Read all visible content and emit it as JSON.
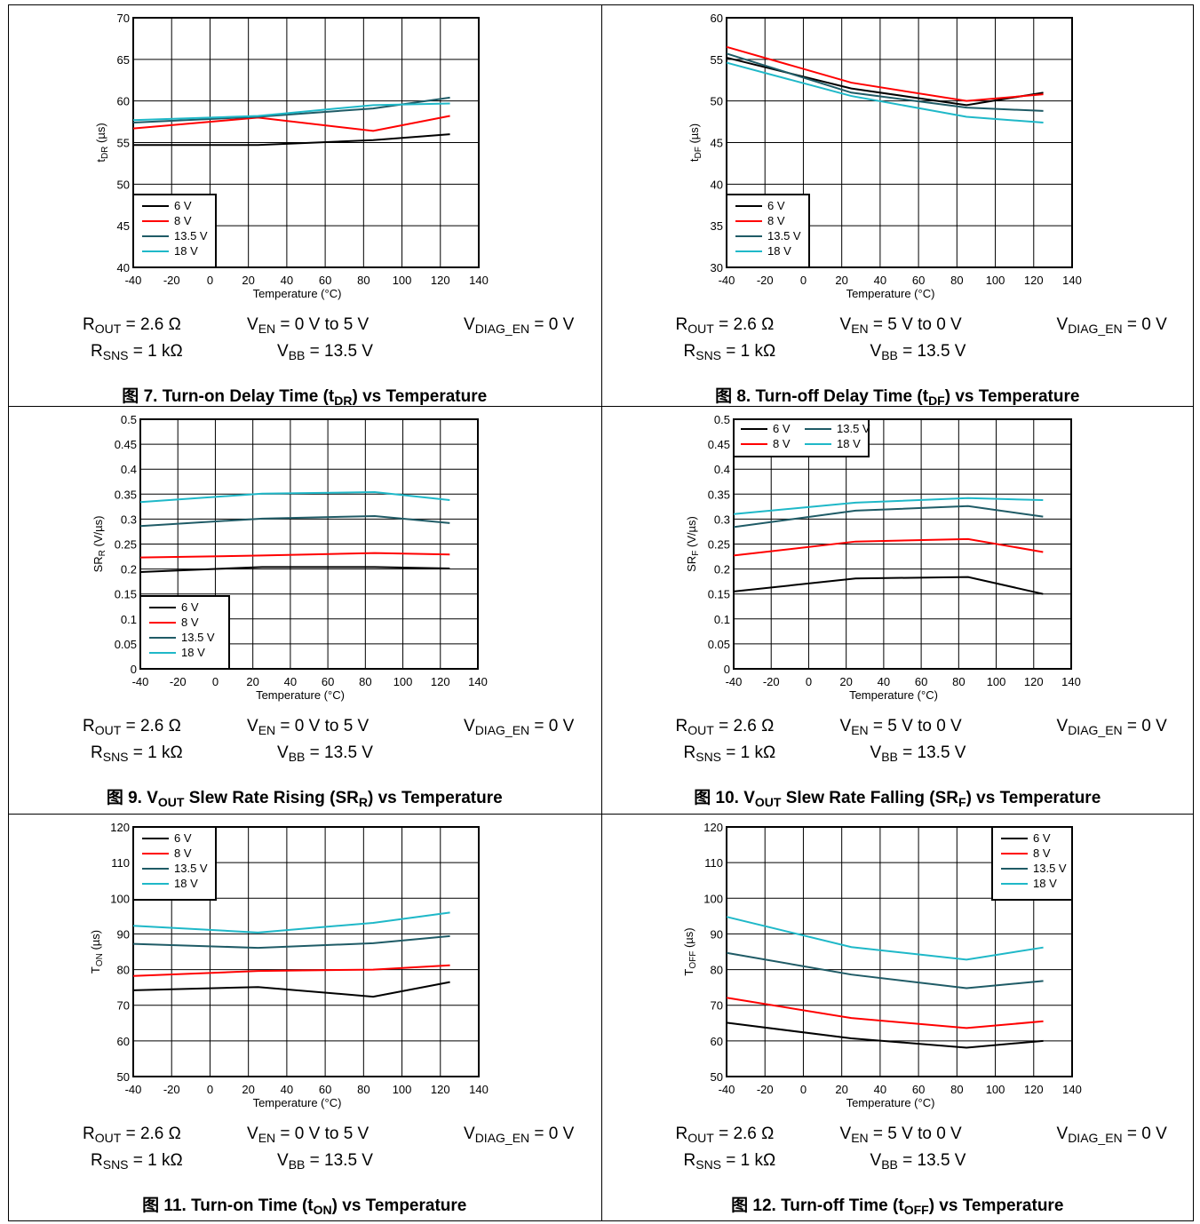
{
  "colors": {
    "s6": "#000000",
    "s8": "#ff0000",
    "s135": "#1f5b66",
    "s18": "#1fb8c8"
  },
  "conditions_on": {
    "rout": "R",
    "rout_sub": "OUT",
    "rout_val": " = 2.6 Ω",
    "ven": "V",
    "ven_sub": "EN",
    "ven_val": " = 0 V to 5 V",
    "vdiag": "V",
    "vdiag_sub": "DIAG_EN",
    "vdiag_val": " = 0 V",
    "rsns": "R",
    "rsns_sub": "SNS",
    "rsns_val": " = 1 kΩ",
    "vbb": "V",
    "vbb_sub": "BB",
    "vbb_val": " = 13.5 V"
  },
  "conditions_off": {
    "rout": "R",
    "rout_sub": "OUT",
    "rout_val": " = 2.6 Ω",
    "ven": "V",
    "ven_sub": "EN",
    "ven_val": " = 5 V to 0 V",
    "vdiag": "V",
    "vdiag_sub": "DIAG_EN",
    "vdiag_val": " = 0 V",
    "rsns": "R",
    "rsns_sub": "SNS",
    "rsns_val": " = 1 kΩ",
    "vbb": "V",
    "vbb_sub": "BB",
    "vbb_val": " = 13.5 V"
  },
  "chart_data": [
    {
      "type": "line",
      "caption": {
        "pre": "图 7. Turn-on Delay Time (t",
        "sub": "DR",
        "post": ") vs Temperature"
      },
      "xlabel": "Temperature (°C)",
      "ylabel": {
        "main": "t",
        "sub": "DR",
        "unit": " (µs)"
      },
      "xlim": [
        -40,
        140
      ],
      "ylim": [
        40,
        70
      ],
      "xticks": [
        -40,
        -20,
        0,
        20,
        40,
        60,
        80,
        100,
        120,
        140
      ],
      "yticks": [
        40,
        45,
        50,
        55,
        60,
        65,
        70
      ],
      "legend": {
        "position": "bottom-left",
        "columns": 1
      },
      "x": [
        -40,
        25,
        85,
        125
      ],
      "series": [
        {
          "name": "6 V",
          "values": [
            54.7,
            54.7,
            55.3,
            56.0
          ]
        },
        {
          "name": "8 V",
          "values": [
            56.7,
            58.0,
            56.4,
            58.2
          ]
        },
        {
          "name": "13.5 V",
          "values": [
            57.4,
            58.1,
            59.1,
            60.4
          ]
        },
        {
          "name": "18 V",
          "values": [
            57.7,
            58.2,
            59.5,
            59.7
          ]
        }
      ]
    },
    {
      "type": "line",
      "caption": {
        "pre": "图 8. Turn-off Delay Time (t",
        "sub": "DF",
        "post": ") vs Temperature"
      },
      "xlabel": "Temperature (°C)",
      "ylabel": {
        "main": "t",
        "sub": "DF",
        "unit": " (µs)"
      },
      "xlim": [
        -40,
        140
      ],
      "ylim": [
        30,
        60
      ],
      "xticks": [
        -40,
        -20,
        0,
        20,
        40,
        60,
        80,
        100,
        120,
        140
      ],
      "yticks": [
        30,
        35,
        40,
        45,
        50,
        55,
        60
      ],
      "legend": {
        "position": "bottom-left",
        "columns": 1
      },
      "x": [
        -40,
        25,
        85,
        125
      ],
      "series": [
        {
          "name": "6 V",
          "values": [
            55.2,
            51.5,
            49.5,
            51.0
          ]
        },
        {
          "name": "8 V",
          "values": [
            56.5,
            52.2,
            50.0,
            50.8
          ]
        },
        {
          "name": "13.5 V",
          "values": [
            55.7,
            51.0,
            49.2,
            48.8
          ]
        },
        {
          "name": "18 V",
          "values": [
            54.6,
            50.6,
            48.1,
            47.4
          ]
        }
      ]
    },
    {
      "type": "line",
      "caption": {
        "pre": "图 9.  V",
        "sub": "OUT",
        "post": " Slew Rate Rising (SR",
        "sub2": "R",
        "post2": ") vs Temperature"
      },
      "xlabel": "Temperature (°C)",
      "ylabel": {
        "main": "SR",
        "sub": "R",
        "unit": " (V/µs)"
      },
      "xlim": [
        -40,
        140
      ],
      "ylim": [
        0,
        0.5
      ],
      "xticks": [
        -40,
        -20,
        0,
        20,
        40,
        60,
        80,
        100,
        120,
        140
      ],
      "yticks": [
        0,
        0.05,
        0.1,
        0.15,
        0.2,
        0.25,
        0.3,
        0.35,
        0.4,
        0.45,
        0.5
      ],
      "legend": {
        "position": "bottom-left",
        "columns": 1
      },
      "x": [
        -40,
        25,
        85,
        125
      ],
      "series": [
        {
          "name": "6 V",
          "values": [
            0.194,
            0.204,
            0.204,
            0.201
          ]
        },
        {
          "name": "8 V",
          "values": [
            0.223,
            0.227,
            0.232,
            0.229
          ]
        },
        {
          "name": "13.5 V",
          "values": [
            0.286,
            0.301,
            0.306,
            0.292
          ]
        },
        {
          "name": "18 V",
          "values": [
            0.334,
            0.351,
            0.354,
            0.338
          ]
        }
      ]
    },
    {
      "type": "line",
      "caption": {
        "pre": "图 10. V",
        "sub": "OUT",
        "post": " Slew Rate Falling (SR",
        "sub2": "F",
        "post2": ") vs Temperature"
      },
      "xlabel": "Temperature (°C)",
      "ylabel": {
        "main": "SR",
        "sub": "F",
        "unit": " (V/µs)"
      },
      "xlim": [
        -40,
        140
      ],
      "ylim": [
        0,
        0.5
      ],
      "xticks": [
        -40,
        -20,
        0,
        20,
        40,
        60,
        80,
        100,
        120,
        140
      ],
      "yticks": [
        0,
        0.05,
        0.1,
        0.15,
        0.2,
        0.25,
        0.3,
        0.35,
        0.4,
        0.45,
        0.5
      ],
      "legend": {
        "position": "top-left",
        "columns": 2
      },
      "x": [
        -40,
        25,
        85,
        125
      ],
      "series": [
        {
          "name": "6 V",
          "values": [
            0.155,
            0.181,
            0.184,
            0.15
          ]
        },
        {
          "name": "8 V",
          "values": [
            0.227,
            0.255,
            0.26,
            0.234
          ]
        },
        {
          "name": "13.5 V",
          "values": [
            0.284,
            0.317,
            0.326,
            0.305
          ]
        },
        {
          "name": "18 V",
          "values": [
            0.31,
            0.333,
            0.342,
            0.338
          ]
        }
      ]
    },
    {
      "type": "line",
      "caption": {
        "pre": "图 11. Turn-on Time (t",
        "sub": "ON",
        "post": ") vs Temperature"
      },
      "xlabel": "Temperature (°C)",
      "ylabel": {
        "main": "T",
        "sub": "ON",
        "unit": " (µs)"
      },
      "xlim": [
        -40,
        140
      ],
      "ylim": [
        50,
        120
      ],
      "xticks": [
        -40,
        -20,
        0,
        20,
        40,
        60,
        80,
        100,
        120,
        140
      ],
      "yticks": [
        50,
        60,
        70,
        80,
        90,
        100,
        110,
        120
      ],
      "legend": {
        "position": "top-left",
        "columns": 1
      },
      "x": [
        -40,
        25,
        85,
        125
      ],
      "series": [
        {
          "name": "6 V",
          "values": [
            74.2,
            75.1,
            72.4,
            76.5
          ]
        },
        {
          "name": "8 V",
          "values": [
            78.2,
            79.6,
            80.0,
            81.2
          ]
        },
        {
          "name": "13.5 V",
          "values": [
            87.2,
            86.1,
            87.4,
            89.4
          ]
        },
        {
          "name": "18 V",
          "values": [
            92.3,
            90.4,
            93.1,
            96.0
          ]
        }
      ]
    },
    {
      "type": "line",
      "caption": {
        "pre": "图 12. Turn-off Time (t",
        "sub": "OFF",
        "post": ") vs Temperature"
      },
      "xlabel": "Temperature (°C)",
      "ylabel": {
        "main": "T",
        "sub": "OFF",
        "unit": " (µs)"
      },
      "xlim": [
        -40,
        140
      ],
      "ylim": [
        50,
        120
      ],
      "xticks": [
        -40,
        -20,
        0,
        20,
        40,
        60,
        80,
        100,
        120,
        140
      ],
      "yticks": [
        50,
        60,
        70,
        80,
        90,
        100,
        110,
        120
      ],
      "legend": {
        "position": "top-right",
        "columns": 1
      },
      "x": [
        -40,
        25,
        85,
        125
      ],
      "series": [
        {
          "name": "6 V",
          "values": [
            65.1,
            60.7,
            58.1,
            60.0
          ]
        },
        {
          "name": "8 V",
          "values": [
            72.1,
            66.4,
            63.6,
            65.5
          ]
        },
        {
          "name": "13.5 V",
          "values": [
            84.7,
            78.6,
            74.8,
            76.8
          ]
        },
        {
          "name": "18 V",
          "values": [
            94.8,
            86.3,
            82.8,
            86.2
          ]
        }
      ]
    }
  ]
}
